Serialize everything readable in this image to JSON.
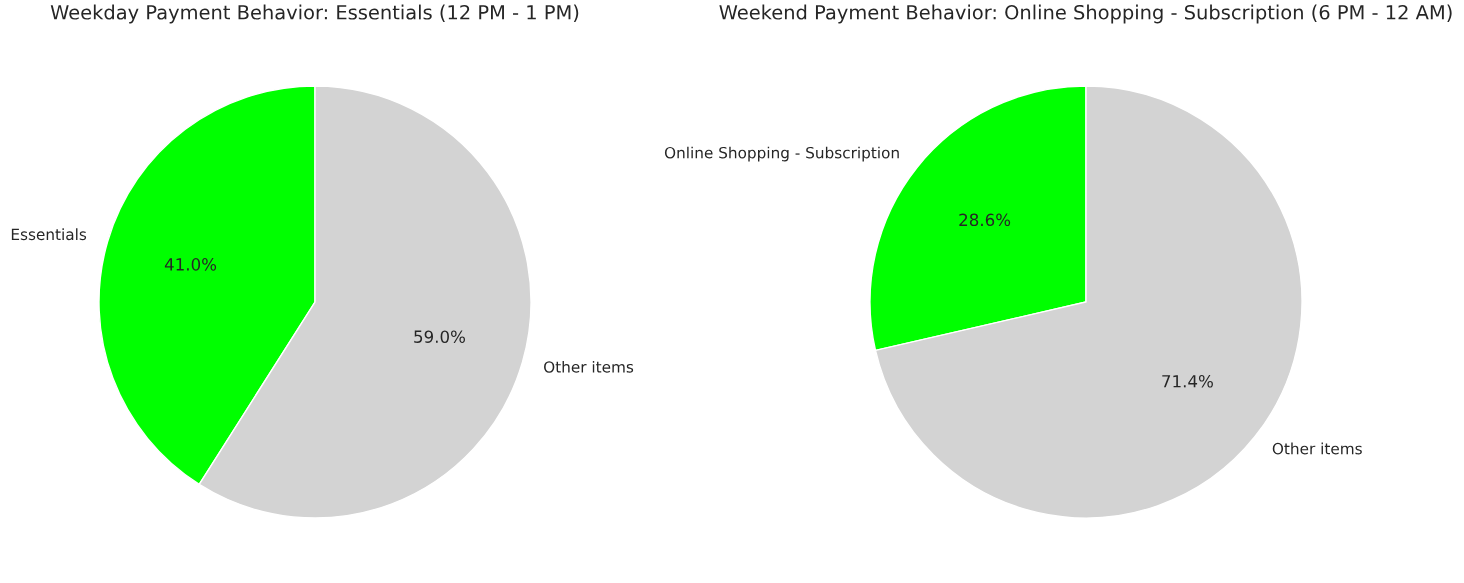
{
  "chart_data": [
    {
      "type": "pie",
      "title": "Weekday Payment Behavior: Essentials (12 PM - 1 PM)",
      "categories": [
        "Essentials",
        "Other items"
      ],
      "values": [
        41.0,
        59.0
      ],
      "colors": [
        "#00ff00",
        "#d3d3d3"
      ],
      "value_labels": [
        "41.0%",
        "59.0%"
      ]
    },
    {
      "type": "pie",
      "title": "Weekend Payment Behavior: Online Shopping - Subscription (6 PM - 12 AM)",
      "categories": [
        "Online Shopping - Subscription",
        "Other items"
      ],
      "values": [
        28.6,
        71.4
      ],
      "colors": [
        "#00ff00",
        "#d3d3d3"
      ],
      "value_labels": [
        "28.6%",
        "71.4%"
      ]
    }
  ]
}
